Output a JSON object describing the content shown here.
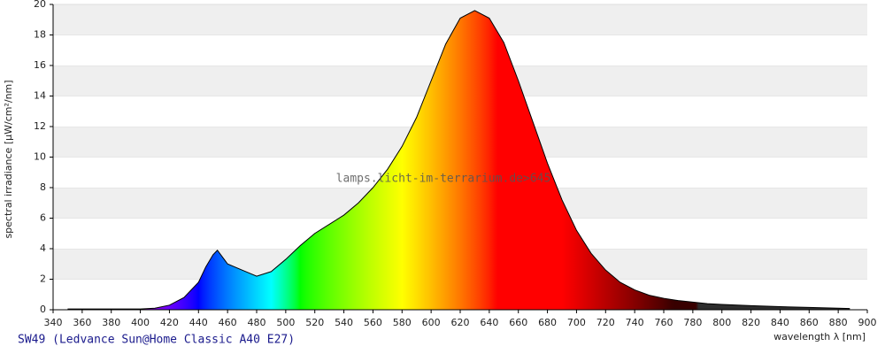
{
  "chart_data": {
    "type": "area",
    "title": "SW49 (Ledvance Sun@Home Classic A40 E27)",
    "xlabel": "wavelength λ [nm]",
    "ylabel": "spectral irradiance [µW/cm²/nm]",
    "annotation": "lamps.licht-im-terrarium.de>645",
    "x": [
      350,
      360,
      370,
      380,
      390,
      400,
      410,
      420,
      430,
      440,
      445,
      450,
      453,
      460,
      470,
      480,
      490,
      500,
      510,
      520,
      530,
      540,
      550,
      560,
      570,
      580,
      590,
      600,
      610,
      620,
      630,
      640,
      650,
      660,
      670,
      680,
      690,
      700,
      710,
      720,
      730,
      740,
      750,
      760,
      770,
      780,
      790,
      800,
      820,
      840,
      860,
      880,
      888
    ],
    "values": [
      0.05,
      0.05,
      0.05,
      0.05,
      0.05,
      0.05,
      0.1,
      0.3,
      0.8,
      1.8,
      2.8,
      3.6,
      3.9,
      3.0,
      2.6,
      2.2,
      2.5,
      3.3,
      4.2,
      5.0,
      5.6,
      6.2,
      7.0,
      8.0,
      9.2,
      10.7,
      12.6,
      15.0,
      17.4,
      19.1,
      19.6,
      19.1,
      17.5,
      15.0,
      12.3,
      9.6,
      7.2,
      5.2,
      3.7,
      2.6,
      1.8,
      1.3,
      0.95,
      0.75,
      0.6,
      0.5,
      0.4,
      0.35,
      0.27,
      0.2,
      0.15,
      0.1,
      0.08
    ],
    "color": "#000000",
    "xlim": [
      340,
      900
    ],
    "ylim": [
      0,
      20
    ],
    "xticks": [
      340,
      360,
      380,
      400,
      420,
      440,
      460,
      480,
      500,
      520,
      540,
      560,
      580,
      600,
      620,
      640,
      660,
      680,
      700,
      720,
      740,
      760,
      780,
      800,
      820,
      840,
      860,
      880,
      900
    ],
    "yticks": [
      0,
      2,
      4,
      6,
      8,
      10,
      12,
      14,
      16,
      18,
      20
    ],
    "grid": true
  }
}
